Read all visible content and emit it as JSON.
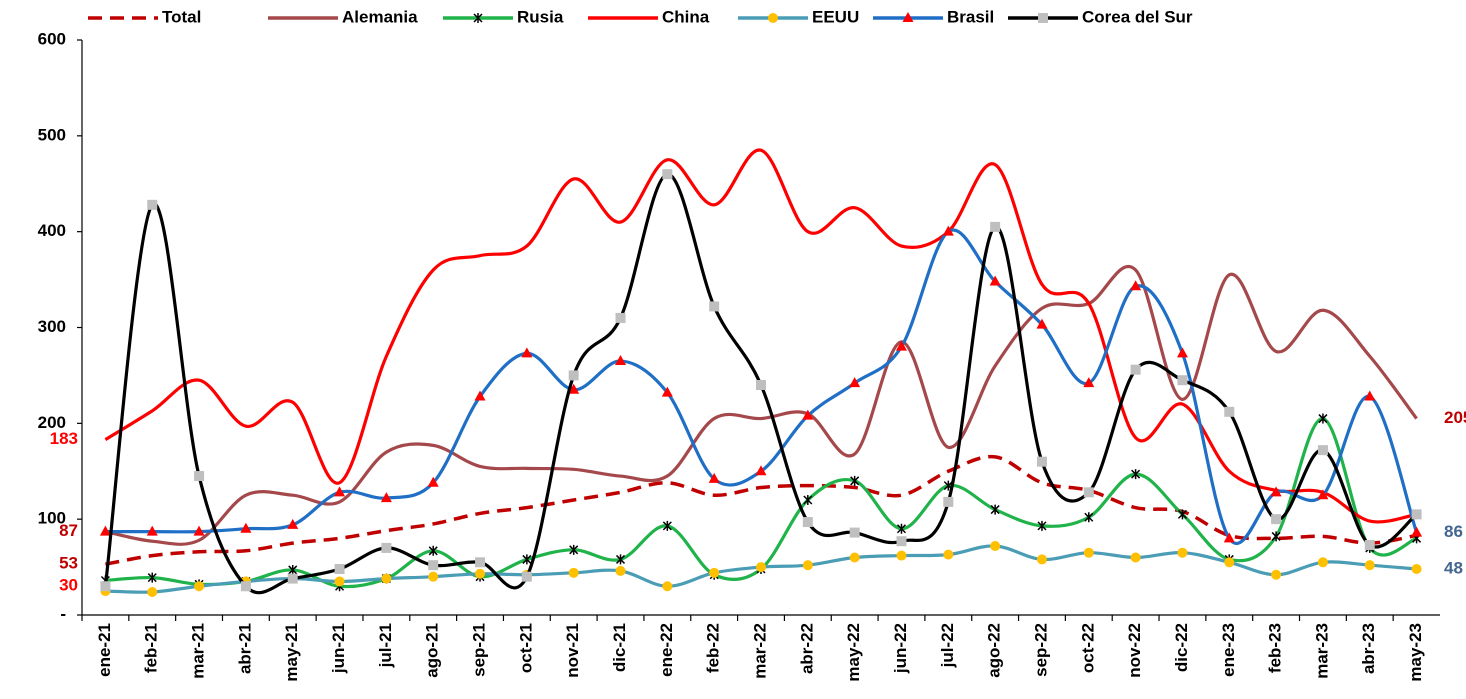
{
  "chart_data": {
    "type": "line",
    "categories": [
      "ene-21",
      "feb-21",
      "mar-21",
      "abr-21",
      "may-21",
      "jun-21",
      "jul-21",
      "ago-21",
      "sep-21",
      "oct-21",
      "nov-21",
      "dic-21",
      "ene-22",
      "feb-22",
      "mar-22",
      "abr-22",
      "may-22",
      "jun-22",
      "jul-22",
      "ago-22",
      "sep-22",
      "oct-22",
      "nov-22",
      "dic-22",
      "ene-23",
      "feb-23",
      "mar-23",
      "abr-23",
      "may-23"
    ],
    "ylim": [
      0,
      600
    ],
    "yticks": [
      {
        "value": 0,
        "label": "-"
      },
      100,
      200,
      300,
      400,
      500,
      600
    ],
    "series": [
      {
        "name": "Total",
        "color": "#c00000",
        "dash": true,
        "marker": "none",
        "label_color": "#c00000",
        "values": [
          53,
          62,
          66,
          67,
          75,
          80,
          88,
          95,
          106,
          112,
          120,
          128,
          138,
          125,
          133,
          135,
          133,
          125,
          150,
          165,
          138,
          130,
          112,
          108,
          83,
          80,
          82,
          75,
          83
        ],
        "value_labels": [
          "53",
          null,
          null,
          null,
          null,
          null,
          null,
          null,
          null,
          null,
          null,
          null,
          null,
          null,
          null,
          null,
          null,
          null,
          null,
          null,
          null,
          null,
          null,
          null,
          null,
          null,
          null,
          null,
          null
        ]
      },
      {
        "name": "Alemania",
        "color": "#a5484b",
        "dash": false,
        "marker": "none",
        "label_color": "#c00000",
        "values": [
          87,
          77,
          78,
          125,
          125,
          118,
          170,
          177,
          155,
          153,
          152,
          145,
          145,
          205,
          205,
          210,
          168,
          285,
          175,
          260,
          320,
          325,
          360,
          225,
          355,
          275,
          318,
          270,
          205
        ],
        "value_labels": [
          "87",
          null,
          null,
          null,
          null,
          null,
          null,
          null,
          null,
          null,
          null,
          null,
          null,
          null,
          null,
          null,
          null,
          null,
          null,
          null,
          null,
          null,
          null,
          null,
          null,
          null,
          null,
          null,
          "205"
        ]
      },
      {
        "name": "Rusia",
        "color": "#1fb34a",
        "dash": false,
        "marker": "star",
        "label_color": "#1fb34a",
        "values": [
          36,
          39,
          32,
          35,
          47,
          30,
          38,
          67,
          40,
          58,
          68,
          58,
          93,
          42,
          48,
          120,
          140,
          90,
          135,
          110,
          93,
          102,
          147,
          105,
          58,
          82,
          205,
          70,
          80
        ]
      },
      {
        "name": "China",
        "color": "#ff0000",
        "dash": false,
        "marker": "none",
        "label_color": "#ff0000",
        "values": [
          183,
          213,
          245,
          197,
          222,
          138,
          270,
          360,
          375,
          385,
          455,
          410,
          475,
          428,
          485,
          400,
          425,
          385,
          400,
          470,
          345,
          325,
          185,
          220,
          150,
          130,
          128,
          98,
          105
        ],
        "value_labels": [
          "183",
          null,
          null,
          null,
          null,
          null,
          null,
          null,
          null,
          null,
          null,
          null,
          null,
          null,
          null,
          null,
          null,
          null,
          null,
          null,
          null,
          null,
          null,
          null,
          null,
          null,
          null,
          null,
          null
        ]
      },
      {
        "name": "EEUU",
        "color": "#4a9db5",
        "dash": false,
        "marker": "circle",
        "label_color": "#44658f",
        "values": [
          25,
          24,
          30,
          35,
          38,
          35,
          38,
          40,
          43,
          42,
          44,
          46,
          30,
          44,
          50,
          52,
          60,
          62,
          63,
          72,
          58,
          65,
          60,
          65,
          55,
          42,
          55,
          52,
          48
        ],
        "value_labels": [
          null,
          null,
          null,
          null,
          null,
          null,
          null,
          null,
          null,
          null,
          null,
          null,
          null,
          null,
          null,
          null,
          null,
          null,
          null,
          null,
          null,
          null,
          null,
          null,
          null,
          null,
          null,
          null,
          "48"
        ]
      },
      {
        "name": "Brasil",
        "color": "#1f6fc6",
        "dash": false,
        "marker": "triangle",
        "label_color": "#44658f",
        "values": [
          87,
          87,
          87,
          90,
          94,
          128,
          122,
          138,
          228,
          273,
          235,
          265,
          232,
          142,
          150,
          208,
          242,
          280,
          400,
          348,
          303,
          242,
          343,
          273,
          80,
          128,
          125,
          228,
          86
        ],
        "value_labels": [
          null,
          null,
          null,
          null,
          null,
          null,
          null,
          null,
          null,
          null,
          null,
          null,
          null,
          null,
          null,
          null,
          null,
          null,
          null,
          null,
          null,
          null,
          null,
          null,
          null,
          null,
          null,
          null,
          "86"
        ]
      },
      {
        "name": "Corea del Sur",
        "color": "#000000",
        "dash": false,
        "marker": "square",
        "label_color": "#ff0000",
        "values": [
          30,
          428,
          145,
          30,
          38,
          48,
          70,
          52,
          55,
          40,
          250,
          310,
          460,
          322,
          240,
          97,
          86,
          77,
          118,
          405,
          160,
          128,
          256,
          245,
          212,
          100,
          172,
          73,
          105
        ],
        "value_labels": [
          "30",
          null,
          null,
          null,
          null,
          null,
          null,
          null,
          null,
          null,
          null,
          null,
          null,
          null,
          null,
          null,
          null,
          null,
          null,
          null,
          null,
          null,
          null,
          null,
          null,
          null,
          null,
          null,
          null
        ]
      }
    ]
  }
}
